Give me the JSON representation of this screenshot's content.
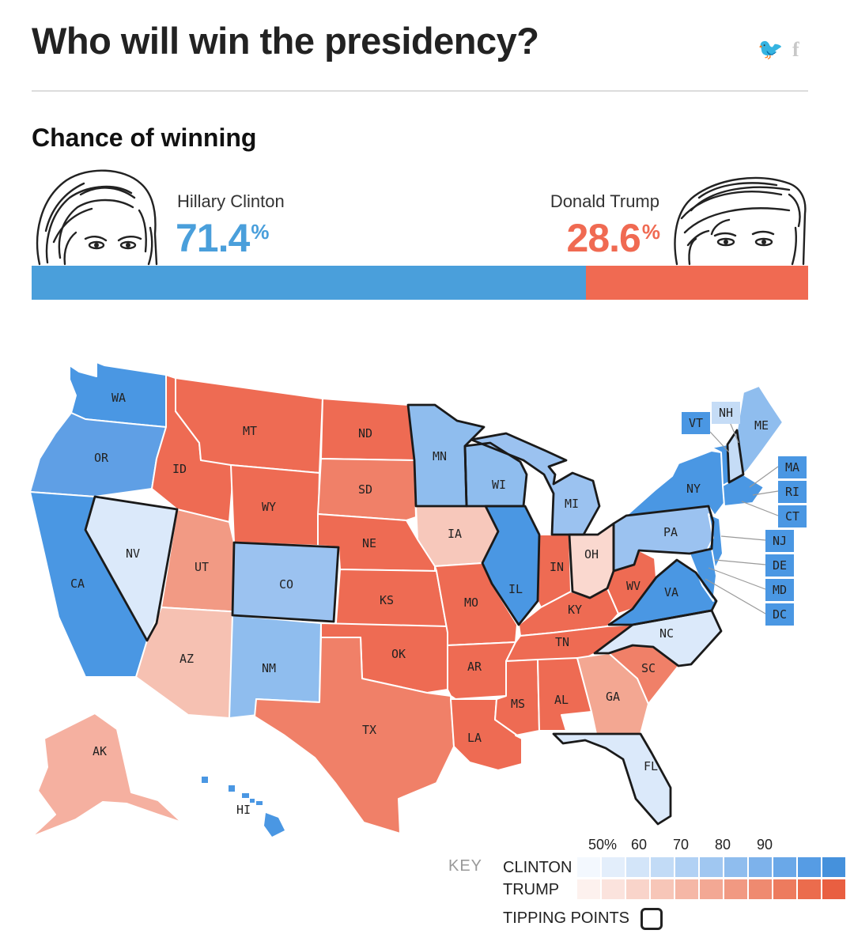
{
  "header": {
    "title": "Who will win the presidency?",
    "share": {
      "twitter_icon": "twitter-icon",
      "facebook_icon": "facebook-icon",
      "twitter_glyph": "🐦",
      "facebook_glyph": "f"
    }
  },
  "section": {
    "title": "Chance of winning"
  },
  "candidates": {
    "clinton": {
      "name": "Hillary Clinton",
      "pct": "71.4",
      "pct_sign": "%",
      "share": 71.4,
      "color": "#4a9fdb"
    },
    "trump": {
      "name": "Donald Trump",
      "pct": "28.6",
      "pct_sign": "%",
      "share": 28.6,
      "color": "#f06a52"
    }
  },
  "map": {
    "states": {
      "WA": "WA",
      "OR": "OR",
      "CA": "CA",
      "NV": "NV",
      "ID": "ID",
      "MT": "MT",
      "WY": "WY",
      "UT": "UT",
      "AZ": "AZ",
      "CO": "CO",
      "NM": "NM",
      "ND": "ND",
      "SD": "SD",
      "NE": "NE",
      "KS": "KS",
      "OK": "OK",
      "TX": "TX",
      "MN": "MN",
      "IA": "IA",
      "MO": "MO",
      "AR": "AR",
      "LA": "LA",
      "WI": "WI",
      "IL": "IL",
      "MI": "MI",
      "IN": "IN",
      "OH": "OH",
      "KY": "KY",
      "TN": "TN",
      "MS": "MS",
      "AL": "AL",
      "GA": "GA",
      "FL": "FL",
      "SC": "SC",
      "NC": "NC",
      "VA": "VA",
      "WV": "WV",
      "PA": "PA",
      "NY": "NY",
      "ME": "ME",
      "AK": "AK",
      "HI": "HI",
      "VT": "VT",
      "NH": "NH",
      "MA": "MA",
      "RI": "RI",
      "CT": "CT",
      "NJ": "NJ",
      "DE": "DE",
      "MD": "MD",
      "DC": "DC"
    }
  },
  "legend": {
    "key": "KEY",
    "clinton": "CLINTON",
    "trump": "TRUMP",
    "tipping": "TIPPING POINTS",
    "ticks": [
      "50%",
      "60",
      "70",
      "80",
      "90"
    ],
    "clinton_colors": [
      "#f3f8fe",
      "#e3eefb",
      "#d3e5f9",
      "#c2dbf6",
      "#b1d1f4",
      "#a0c7f1",
      "#8fbdee",
      "#7db2eb",
      "#6aa8e8",
      "#569ce4",
      "#4591dc"
    ],
    "trump_colors": [
      "#fdf1ee",
      "#fbe3dd",
      "#f9d4ca",
      "#f7c6b8",
      "#f5b7a6",
      "#f3a894",
      "#f19982",
      "#ef8a70",
      "#ed7b5e",
      "#eb6c4d",
      "#e95f41"
    ]
  }
}
